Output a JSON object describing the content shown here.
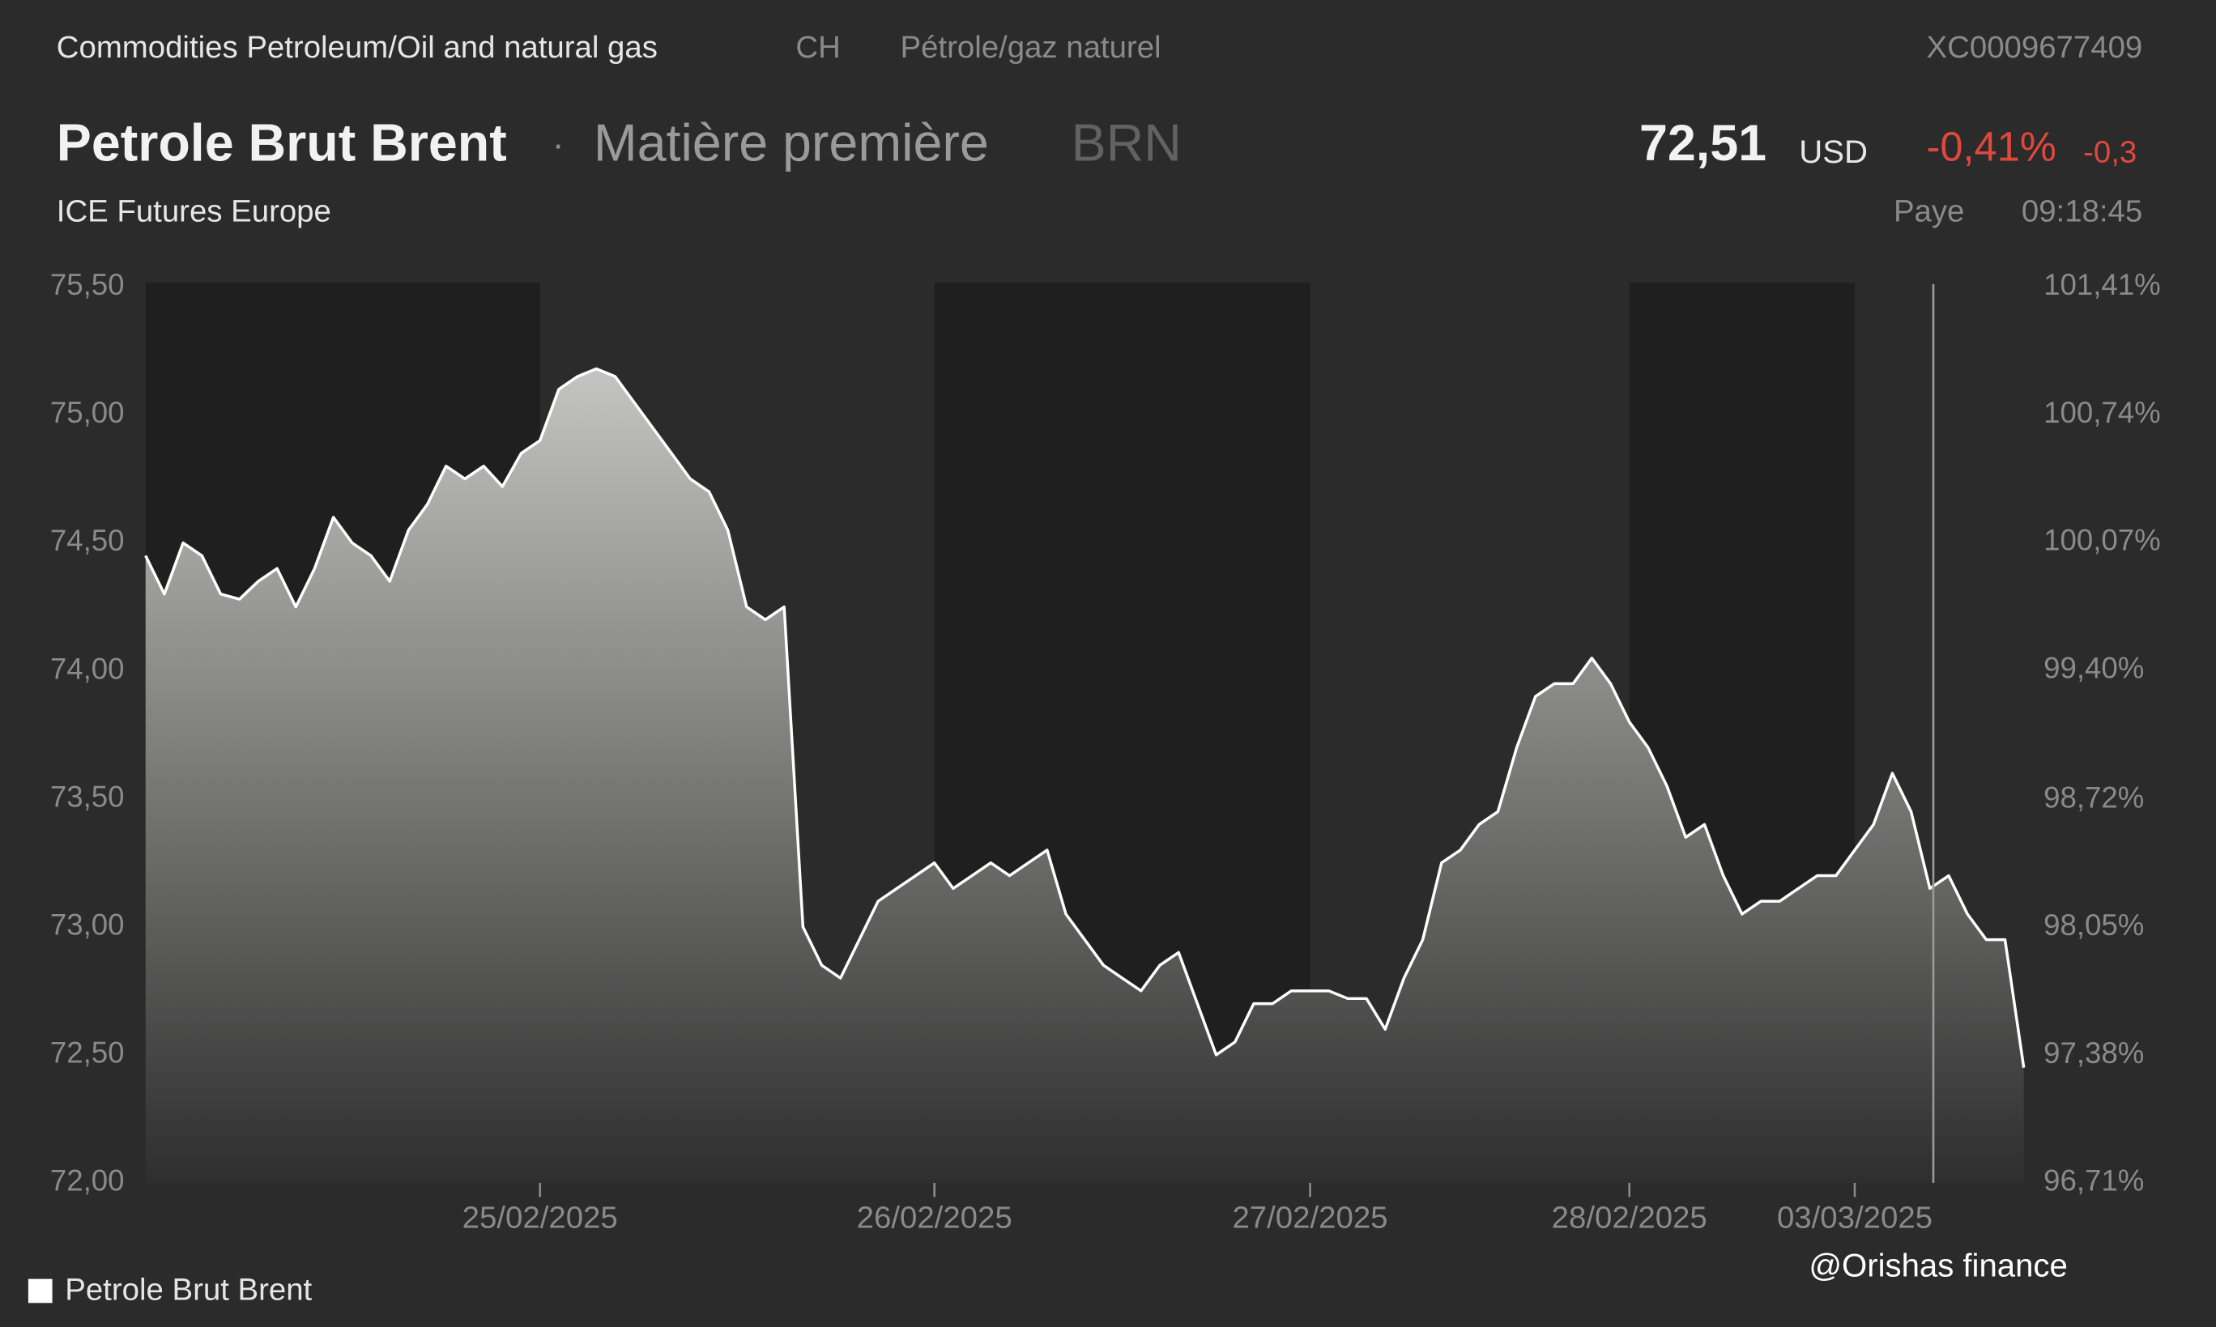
{
  "header": {
    "breadcrumb": "Commodities Petroleum/Oil and natural gas",
    "country": "CH",
    "sector": "Pétrole/gaz naturel",
    "isin": "XC0009677409",
    "name": "Petrole Brut Brent",
    "separator": "·",
    "asset_class": "Matière première",
    "symbol": "BRN",
    "price": "72,51",
    "currency": "USD",
    "change_pct": "-0,41%",
    "change_abs": "-0,3",
    "exchange": "ICE Futures Europe",
    "status": "Paye",
    "time": "09:18:45"
  },
  "watermark": "@Orishas finance",
  "chart_data": {
    "type": "area",
    "categories": [
      null,
      null,
      null,
      null,
      null,
      null,
      null,
      null,
      null,
      null,
      null,
      null,
      null,
      null,
      null,
      null,
      null,
      null,
      null,
      null,
      null,
      "25/02/2025",
      null,
      null,
      null,
      null,
      null,
      null,
      null,
      null,
      null,
      null,
      null,
      null,
      null,
      null,
      null,
      null,
      null,
      null,
      null,
      null,
      "26/02/2025",
      null,
      null,
      null,
      null,
      null,
      null,
      null,
      null,
      null,
      null,
      null,
      null,
      null,
      null,
      null,
      null,
      null,
      null,
      null,
      "27/02/2025",
      null,
      null,
      null,
      null,
      null,
      null,
      null,
      null,
      null,
      null,
      null,
      null,
      null,
      null,
      null,
      null,
      "28/02/2025",
      null,
      null,
      null,
      null,
      null,
      null,
      null,
      null,
      null,
      null,
      null,
      "03/03/2025",
      null,
      null,
      null,
      null,
      null,
      null,
      null,
      null,
      null
    ],
    "series": [
      {
        "name": "Petrole Brut Brent",
        "color": "#ffffff",
        "values": [
          74.45,
          74.3,
          74.5,
          74.45,
          74.3,
          74.28,
          74.35,
          74.4,
          74.25,
          74.4,
          74.6,
          74.5,
          74.45,
          74.35,
          74.55,
          74.65,
          74.8,
          74.75,
          74.8,
          74.72,
          74.85,
          74.9,
          75.1,
          75.15,
          75.18,
          75.15,
          75.05,
          74.95,
          74.85,
          74.75,
          74.7,
          74.55,
          74.25,
          74.2,
          74.25,
          73.0,
          72.85,
          72.8,
          72.95,
          73.1,
          73.15,
          73.2,
          73.25,
          73.15,
          73.2,
          73.25,
          73.2,
          73.25,
          73.3,
          73.05,
          72.95,
          72.85,
          72.8,
          72.75,
          72.85,
          72.9,
          72.7,
          72.5,
          72.55,
          72.7,
          72.7,
          72.75,
          72.75,
          72.75,
          72.72,
          72.72,
          72.6,
          72.8,
          72.95,
          73.25,
          73.3,
          73.4,
          73.45,
          73.7,
          73.9,
          73.95,
          73.95,
          74.05,
          73.95,
          73.8,
          73.7,
          73.55,
          73.35,
          73.4,
          73.2,
          73.05,
          73.1,
          73.1,
          73.15,
          73.2,
          73.2,
          73.3,
          73.4,
          73.6,
          73.45,
          73.15,
          73.2,
          73.05,
          72.95,
          72.95,
          72.45
        ]
      }
    ],
    "ylim": [
      72.0,
      75.5
    ],
    "yticks": [
      {
        "value": 72.0,
        "label": "72,00"
      },
      {
        "value": 72.5,
        "label": "72,50"
      },
      {
        "value": 73.0,
        "label": "73,00"
      },
      {
        "value": 73.5,
        "label": "73,50"
      },
      {
        "value": 74.0,
        "label": "74,00"
      },
      {
        "value": 74.5,
        "label": "74,50"
      },
      {
        "value": 75.0,
        "label": "75,00"
      },
      {
        "value": 75.5,
        "label": "75,50"
      }
    ],
    "y2lim": [
      96.71,
      101.41
    ],
    "y2ticks": [
      {
        "value": 96.71,
        "label": "96,71%"
      },
      {
        "value": 97.38,
        "label": "97,38%"
      },
      {
        "value": 98.05,
        "label": "98,05%"
      },
      {
        "value": 98.72,
        "label": "98,72%"
      },
      {
        "value": 99.4,
        "label": "99,40%"
      },
      {
        "value": 100.07,
        "label": "100,07%"
      },
      {
        "value": 100.74,
        "label": "100,74%"
      },
      {
        "value": 101.41,
        "label": "101,41%"
      }
    ],
    "grid": false,
    "legend": "bottom-left"
  }
}
